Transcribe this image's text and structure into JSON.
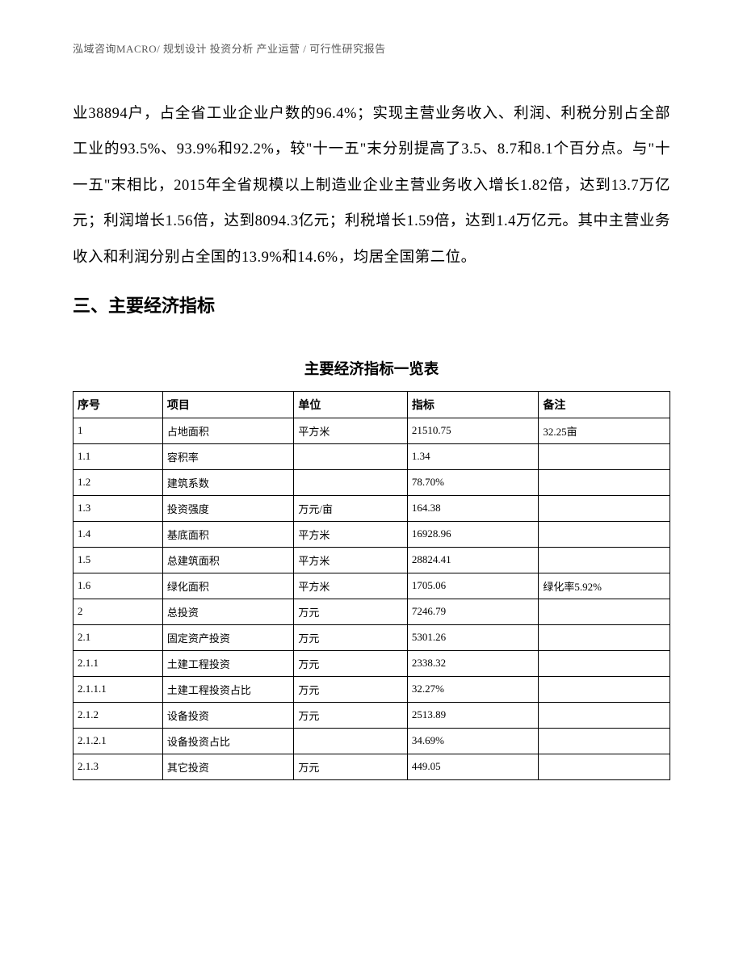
{
  "header": {
    "text": "泓域咨询MACRO/ 规划设计  投资分析  产业运营 / 可行性研究报告"
  },
  "body_paragraph": "业38894户，占全省工业企业户数的96.4%；实现主营业务收入、利润、利税分别占全部工业的93.5%、93.9%和92.2%，较\"十一五\"末分别提高了3.5、8.7和8.1个百分点。与\"十一五\"末相比，2015年全省规模以上制造业企业主营业务收入增长1.82倍，达到13.7万亿元；利润增长1.56倍，达到8094.3亿元；利税增长1.59倍，达到1.4万亿元。其中主营业务收入和利润分别占全国的13.9%和14.6%，均居全国第二位。",
  "section_heading": "三、主要经济指标",
  "table": {
    "title": "主要经济指标一览表",
    "columns": [
      "序号",
      "项目",
      "单位",
      "指标",
      "备注"
    ],
    "rows": [
      [
        "1",
        "占地面积",
        "平方米",
        "21510.75",
        "32.25亩"
      ],
      [
        "1.1",
        "容积率",
        "",
        "1.34",
        ""
      ],
      [
        "1.2",
        "建筑系数",
        "",
        "78.70%",
        ""
      ],
      [
        "1.3",
        "投资强度",
        "万元/亩",
        "164.38",
        ""
      ],
      [
        "1.4",
        "基底面积",
        "平方米",
        "16928.96",
        ""
      ],
      [
        "1.5",
        "总建筑面积",
        "平方米",
        "28824.41",
        ""
      ],
      [
        "1.6",
        "绿化面积",
        "平方米",
        "1705.06",
        "绿化率5.92%"
      ],
      [
        "2",
        "总投资",
        "万元",
        "7246.79",
        ""
      ],
      [
        "2.1",
        "固定资产投资",
        "万元",
        "5301.26",
        ""
      ],
      [
        "2.1.1",
        "土建工程投资",
        "万元",
        "2338.32",
        ""
      ],
      [
        "2.1.1.1",
        "土建工程投资占比",
        "万元",
        "32.27%",
        ""
      ],
      [
        "2.1.2",
        "设备投资",
        "万元",
        "2513.89",
        ""
      ],
      [
        "2.1.2.1",
        "设备投资占比",
        "",
        "34.69%",
        ""
      ],
      [
        "2.1.3",
        "其它投资",
        "万元",
        "449.05",
        ""
      ]
    ]
  }
}
